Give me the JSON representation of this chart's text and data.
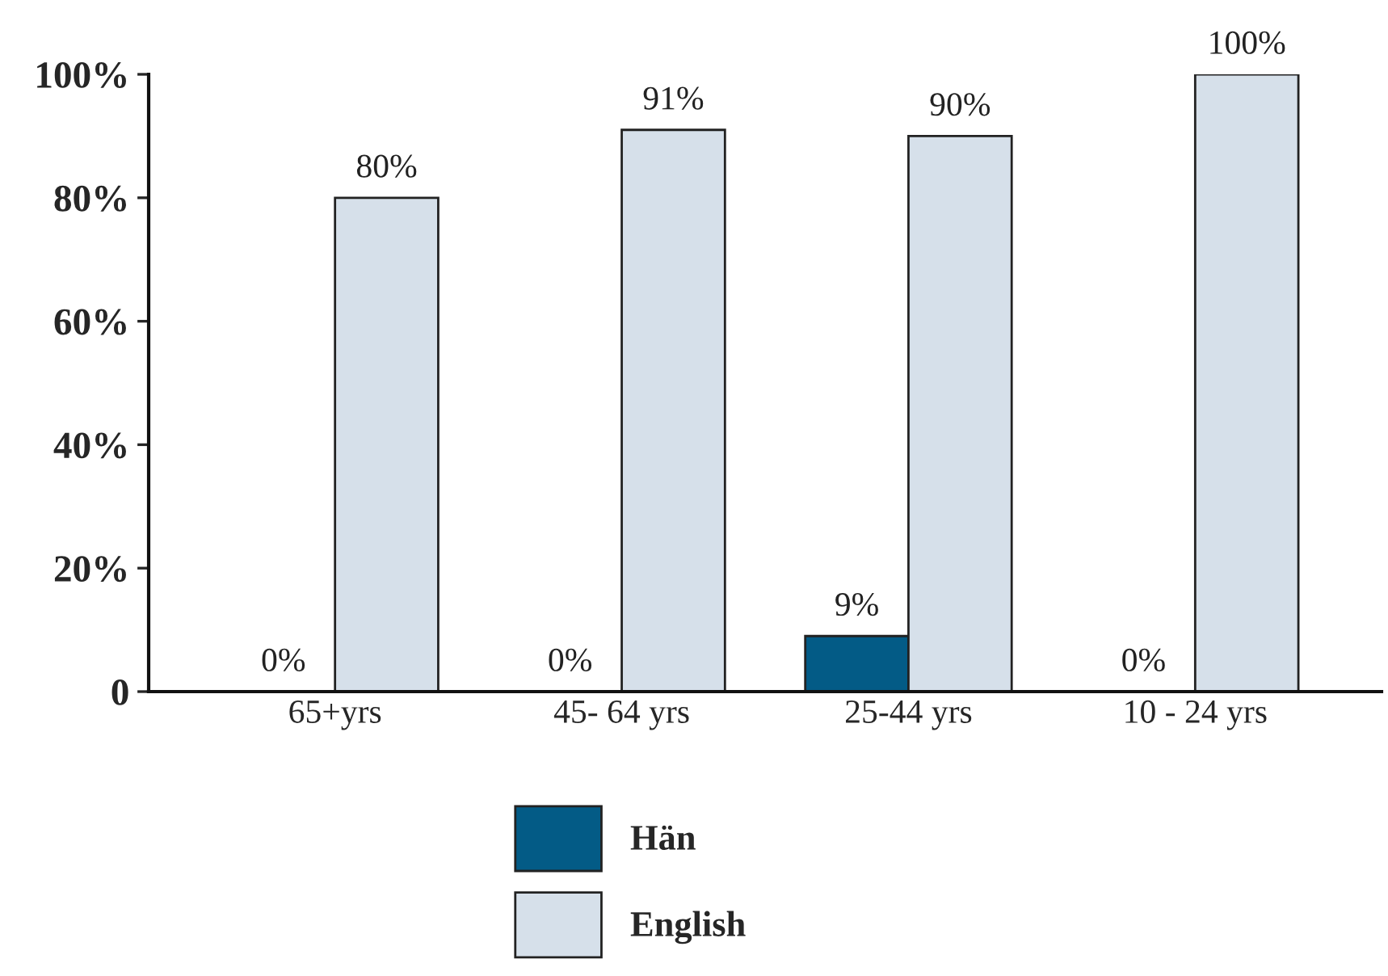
{
  "chart_data": {
    "type": "bar",
    "categories": [
      "65+yrs",
      "45- 64 yrs",
      "25-44 yrs",
      "10 - 24 yrs"
    ],
    "series": [
      {
        "name": "Hän",
        "color": "#035b86",
        "values": [
          0,
          0,
          9,
          0
        ],
        "value_labels": [
          "0%",
          "0%",
          "9%",
          "0%"
        ]
      },
      {
        "name": "English",
        "color": "#d6e0ea",
        "values": [
          80,
          91,
          90,
          100
        ],
        "value_labels": [
          "80%",
          "91%",
          "90%",
          "100%"
        ]
      }
    ],
    "ylim": [
      0,
      100
    ],
    "yticks": [
      0,
      {
        "value": 20,
        "label": "20%"
      },
      {
        "value": 40,
        "label": "40%"
      },
      {
        "value": 60,
        "label": "60%"
      },
      {
        "value": 80,
        "label": "80%"
      },
      {
        "value": 100,
        "label": "100%"
      }
    ],
    "grid": false,
    "legend": "bottom"
  }
}
